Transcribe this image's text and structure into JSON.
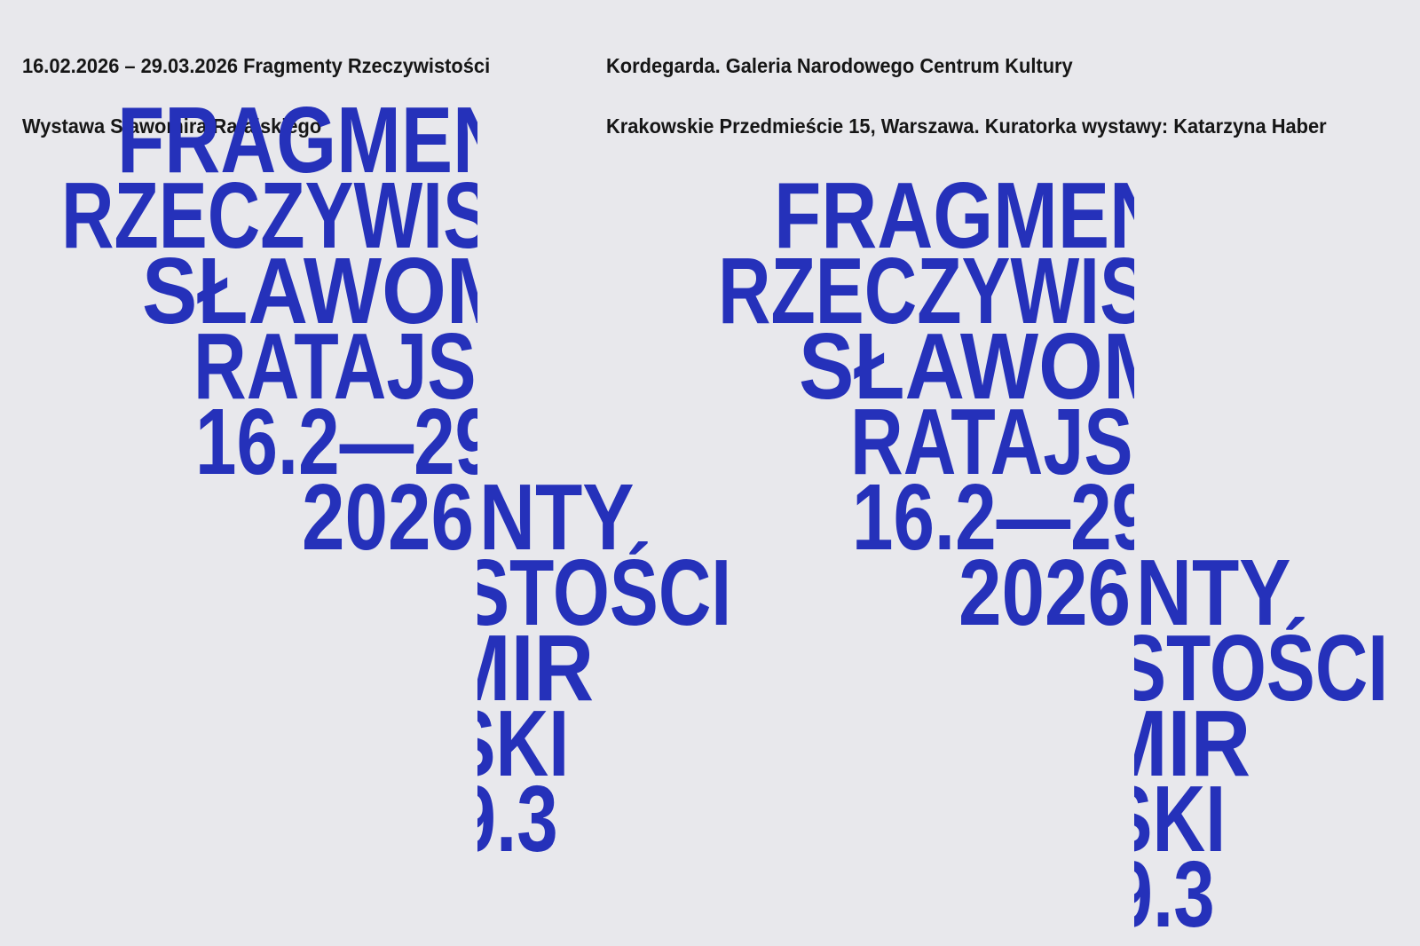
{
  "background": "#e8e8ec",
  "accent_blue": "#2531ba",
  "header_text_color": "#161616",
  "header": {
    "left_line1": "16.02.2026 – 29.03.2026 Fragmenty Rzeczywistości",
    "left_line2": "Wystawa Sławomira Ratajskiego",
    "right_line1": "Kordegarda. Galeria Narodowego Centrum Kultury",
    "right_line2": "Krakowskie Przedmieście 15, Warszawa. Kuratorka wystawy: Katarzyna Haber"
  },
  "poster": {
    "lines": [
      "FRAGMENTY",
      "RZECZYWISTOŚCI",
      "SŁAWOMIR",
      "RATAJSKI",
      "16.2—29.3",
      "2026"
    ],
    "composition_count": 2
  }
}
